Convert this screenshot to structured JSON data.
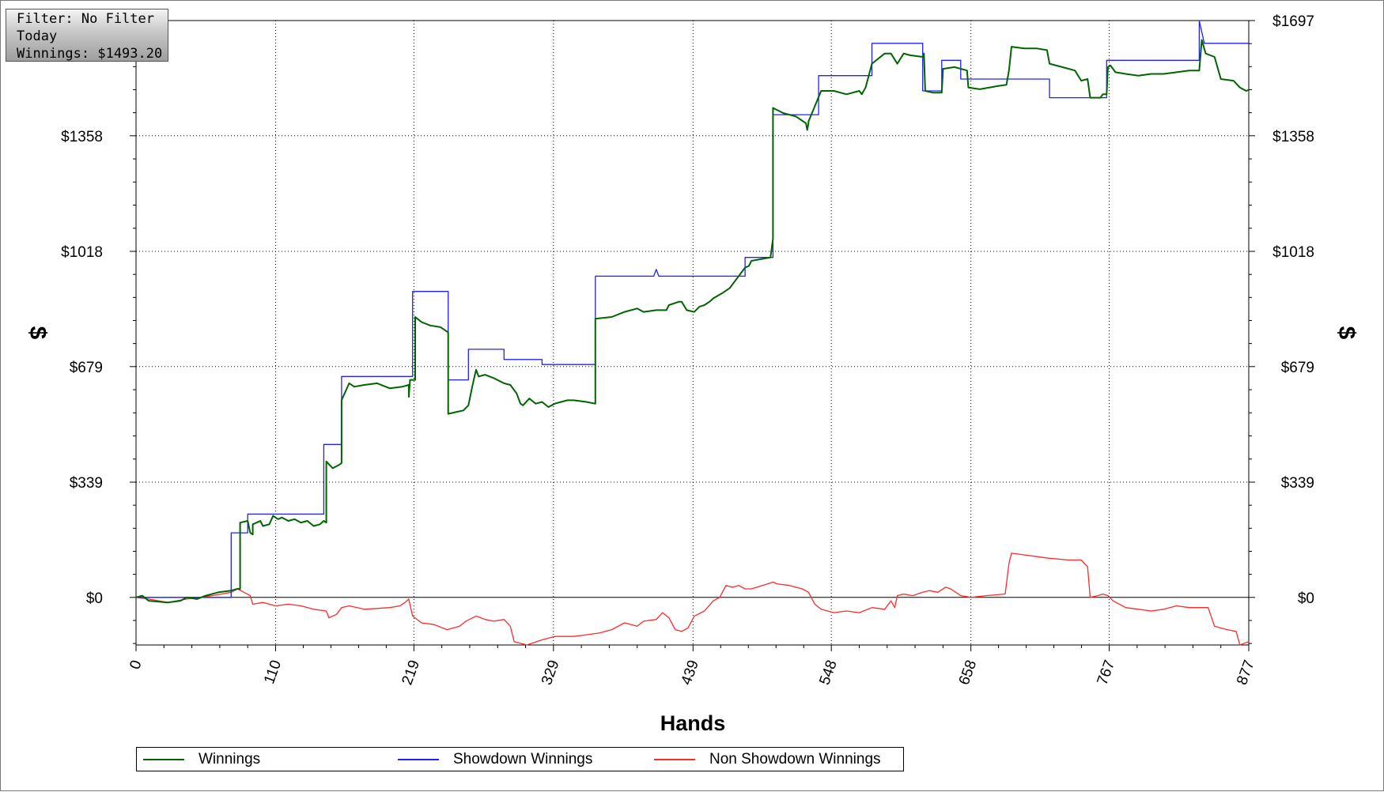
{
  "info_box": {
    "filter": "Filter: No Filter",
    "period": "Today",
    "winnings": "Winnings: $1493.20"
  },
  "colors": {
    "winnings": "#006400",
    "showdown": "#2020ff",
    "non_showdown": "#ff2a2a",
    "grid": "#000000"
  },
  "chart_data": {
    "type": "line",
    "xlabel": "Hands",
    "ylabel": "$",
    "xlim": [
      0,
      877
    ],
    "ylim": [
      -140,
      1697
    ],
    "x_ticks": [
      "0",
      "110",
      "219",
      "329",
      "439",
      "548",
      "658",
      "767",
      "877"
    ],
    "y_ticks": [
      "$0",
      "$339",
      "$679",
      "$1018",
      "$1358",
      "$1697"
    ],
    "grid": true,
    "legend_position": "bottom",
    "series": [
      {
        "name": "Winnings",
        "points": [
          [
            0,
            0
          ],
          [
            5,
            5
          ],
          [
            10,
            -10
          ],
          [
            25,
            -15
          ],
          [
            35,
            -10
          ],
          [
            40,
            0
          ],
          [
            48,
            -5
          ],
          [
            55,
            5
          ],
          [
            65,
            15
          ],
          [
            75,
            20
          ],
          [
            80,
            25
          ],
          [
            82,
            25
          ],
          [
            82,
            220
          ],
          [
            88,
            225
          ],
          [
            90,
            190
          ],
          [
            92,
            185
          ],
          [
            92,
            215
          ],
          [
            95,
            220
          ],
          [
            98,
            225
          ],
          [
            100,
            210
          ],
          [
            105,
            215
          ],
          [
            108,
            240
          ],
          [
            112,
            230
          ],
          [
            115,
            235
          ],
          [
            120,
            225
          ],
          [
            125,
            230
          ],
          [
            130,
            220
          ],
          [
            135,
            225
          ],
          [
            140,
            210
          ],
          [
            145,
            215
          ],
          [
            148,
            225
          ],
          [
            150,
            220
          ],
          [
            150,
            400
          ],
          [
            155,
            380
          ],
          [
            160,
            390
          ],
          [
            162,
            395
          ],
          [
            162,
            580
          ],
          [
            168,
            630
          ],
          [
            172,
            620
          ],
          [
            180,
            625
          ],
          [
            190,
            630
          ],
          [
            200,
            615
          ],
          [
            210,
            620
          ],
          [
            215,
            625
          ],
          [
            215,
            590
          ],
          [
            216,
            640
          ],
          [
            220,
            640
          ],
          [
            220,
            825
          ],
          [
            225,
            810
          ],
          [
            232,
            800
          ],
          [
            240,
            795
          ],
          [
            246,
            780
          ],
          [
            246,
            540
          ],
          [
            252,
            545
          ],
          [
            258,
            550
          ],
          [
            262,
            565
          ],
          [
            265,
            620
          ],
          [
            268,
            670
          ],
          [
            270,
            650
          ],
          [
            275,
            655
          ],
          [
            282,
            645
          ],
          [
            290,
            630
          ],
          [
            295,
            625
          ],
          [
            300,
            600
          ],
          [
            303,
            570
          ],
          [
            305,
            565
          ],
          [
            310,
            585
          ],
          [
            315,
            570
          ],
          [
            320,
            575
          ],
          [
            325,
            560
          ],
          [
            330,
            570
          ],
          [
            335,
            575
          ],
          [
            340,
            580
          ],
          [
            345,
            580
          ],
          [
            355,
            575
          ],
          [
            362,
            570
          ],
          [
            362,
            820
          ],
          [
            375,
            825
          ],
          [
            385,
            840
          ],
          [
            395,
            850
          ],
          [
            400,
            840
          ],
          [
            410,
            845
          ],
          [
            418,
            845
          ],
          [
            420,
            860
          ],
          [
            428,
            870
          ],
          [
            430,
            870
          ],
          [
            434,
            845
          ],
          [
            440,
            840
          ],
          [
            444,
            855
          ],
          [
            448,
            860
          ],
          [
            452,
            870
          ],
          [
            455,
            880
          ],
          [
            462,
            895
          ],
          [
            468,
            910
          ],
          [
            472,
            930
          ],
          [
            480,
            970
          ],
          [
            483,
            975
          ],
          [
            485,
            990
          ],
          [
            500,
            1000
          ],
          [
            502,
            1055
          ],
          [
            502,
            1440
          ],
          [
            510,
            1425
          ],
          [
            520,
            1415
          ],
          [
            528,
            1395
          ],
          [
            529,
            1375
          ],
          [
            530,
            1395
          ],
          [
            530,
            1400
          ],
          [
            540,
            1490
          ],
          [
            550,
            1490
          ],
          [
            560,
            1480
          ],
          [
            570,
            1490
          ],
          [
            572,
            1480
          ],
          [
            575,
            1500
          ],
          [
            580,
            1570
          ],
          [
            590,
            1600
          ],
          [
            595,
            1600
          ],
          [
            600,
            1570
          ],
          [
            605,
            1600
          ],
          [
            610,
            1595
          ],
          [
            620,
            1590
          ],
          [
            621,
            1600
          ],
          [
            622,
            1490
          ],
          [
            628,
            1485
          ],
          [
            635,
            1485
          ],
          [
            636,
            1555
          ],
          [
            645,
            1560
          ],
          [
            655,
            1550
          ],
          [
            656,
            1500
          ],
          [
            665,
            1495
          ],
          [
            680,
            1505
          ],
          [
            686,
            1508
          ],
          [
            688,
            1550
          ],
          [
            690,
            1620
          ],
          [
            700,
            1615
          ],
          [
            710,
            1615
          ],
          [
            718,
            1610
          ],
          [
            720,
            1570
          ],
          [
            730,
            1560
          ],
          [
            740,
            1550
          ],
          [
            745,
            1520
          ],
          [
            750,
            1525
          ],
          [
            752,
            1470
          ],
          [
            760,
            1470
          ],
          [
            762,
            1480
          ],
          [
            765,
            1480
          ],
          [
            766,
            1560
          ],
          [
            768,
            1565
          ],
          [
            772,
            1545
          ],
          [
            780,
            1540
          ],
          [
            790,
            1535
          ],
          [
            800,
            1540
          ],
          [
            810,
            1540
          ],
          [
            820,
            1545
          ],
          [
            830,
            1550
          ],
          [
            838,
            1550
          ],
          [
            840,
            1640
          ],
          [
            843,
            1600
          ],
          [
            850,
            1590
          ],
          [
            855,
            1525
          ],
          [
            865,
            1520
          ],
          [
            870,
            1500
          ],
          [
            875,
            1490
          ],
          [
            877,
            1493
          ]
        ]
      },
      {
        "name": "Showdown Winnings",
        "points": [
          [
            0,
            0
          ],
          [
            75,
            0
          ],
          [
            75,
            190
          ],
          [
            88,
            190
          ],
          [
            88,
            245
          ],
          [
            148,
            245
          ],
          [
            148,
            450
          ],
          [
            162,
            450
          ],
          [
            162,
            650
          ],
          [
            218,
            650
          ],
          [
            218,
            900
          ],
          [
            246,
            900
          ],
          [
            246,
            640
          ],
          [
            262,
            640
          ],
          [
            262,
            730
          ],
          [
            290,
            730
          ],
          [
            290,
            700
          ],
          [
            320,
            700
          ],
          [
            320,
            685
          ],
          [
            362,
            685
          ],
          [
            362,
            945
          ],
          [
            408,
            945
          ],
          [
            410,
            965
          ],
          [
            412,
            945
          ],
          [
            480,
            945
          ],
          [
            480,
            1000
          ],
          [
            502,
            1000
          ],
          [
            502,
            1420
          ],
          [
            538,
            1420
          ],
          [
            538,
            1535
          ],
          [
            580,
            1535
          ],
          [
            580,
            1630
          ],
          [
            620,
            1630
          ],
          [
            620,
            1490
          ],
          [
            635,
            1490
          ],
          [
            635,
            1580
          ],
          [
            650,
            1580
          ],
          [
            650,
            1525
          ],
          [
            720,
            1525
          ],
          [
            720,
            1470
          ],
          [
            765,
            1470
          ],
          [
            765,
            1580
          ],
          [
            838,
            1580
          ],
          [
            838,
            1697
          ],
          [
            842,
            1630
          ],
          [
            877,
            1630
          ]
        ]
      },
      {
        "name": "Non Showdown Winnings",
        "points": [
          [
            0,
            0
          ],
          [
            10,
            -5
          ],
          [
            25,
            -15
          ],
          [
            40,
            -5
          ],
          [
            60,
            5
          ],
          [
            75,
            15
          ],
          [
            80,
            25
          ],
          [
            85,
            15
          ],
          [
            90,
            5
          ],
          [
            92,
            -20
          ],
          [
            100,
            -15
          ],
          [
            110,
            -25
          ],
          [
            120,
            -20
          ],
          [
            130,
            -25
          ],
          [
            140,
            -35
          ],
          [
            150,
            -40
          ],
          [
            152,
            -60
          ],
          [
            158,
            -50
          ],
          [
            162,
            -30
          ],
          [
            168,
            -25
          ],
          [
            180,
            -35
          ],
          [
            200,
            -30
          ],
          [
            208,
            -25
          ],
          [
            212,
            -15
          ],
          [
            215,
            -5
          ],
          [
            218,
            -55
          ],
          [
            225,
            -75
          ],
          [
            235,
            -80
          ],
          [
            245,
            -95
          ],
          [
            255,
            -85
          ],
          [
            260,
            -70
          ],
          [
            268,
            -55
          ],
          [
            275,
            -65
          ],
          [
            282,
            -70
          ],
          [
            290,
            -65
          ],
          [
            295,
            -85
          ],
          [
            298,
            -130
          ],
          [
            308,
            -140
          ],
          [
            320,
            -125
          ],
          [
            330,
            -115
          ],
          [
            345,
            -115
          ],
          [
            355,
            -110
          ],
          [
            365,
            -105
          ],
          [
            375,
            -95
          ],
          [
            385,
            -75
          ],
          [
            395,
            -85
          ],
          [
            400,
            -70
          ],
          [
            410,
            -65
          ],
          [
            415,
            -45
          ],
          [
            420,
            -60
          ],
          [
            425,
            -95
          ],
          [
            430,
            -100
          ],
          [
            435,
            -90
          ],
          [
            440,
            -55
          ],
          [
            448,
            -40
          ],
          [
            455,
            -10
          ],
          [
            460,
            0
          ],
          [
            465,
            35
          ],
          [
            470,
            30
          ],
          [
            475,
            35
          ],
          [
            480,
            25
          ],
          [
            485,
            25
          ],
          [
            498,
            40
          ],
          [
            502,
            45
          ],
          [
            505,
            40
          ],
          [
            515,
            35
          ],
          [
            525,
            25
          ],
          [
            530,
            15
          ],
          [
            535,
            -20
          ],
          [
            540,
            -35
          ],
          [
            550,
            -45
          ],
          [
            560,
            -40
          ],
          [
            570,
            -45
          ],
          [
            580,
            -30
          ],
          [
            590,
            -35
          ],
          [
            595,
            -10
          ],
          [
            598,
            -30
          ],
          [
            600,
            5
          ],
          [
            605,
            10
          ],
          [
            612,
            5
          ],
          [
            620,
            15
          ],
          [
            625,
            20
          ],
          [
            632,
            15
          ],
          [
            638,
            30
          ],
          [
            642,
            25
          ],
          [
            650,
            5
          ],
          [
            658,
            0
          ],
          [
            670,
            5
          ],
          [
            685,
            10
          ],
          [
            688,
            100
          ],
          [
            690,
            130
          ],
          [
            700,
            125
          ],
          [
            710,
            120
          ],
          [
            720,
            115
          ],
          [
            735,
            110
          ],
          [
            745,
            110
          ],
          [
            750,
            90
          ],
          [
            752,
            0
          ],
          [
            758,
            5
          ],
          [
            762,
            10
          ],
          [
            766,
            5
          ],
          [
            770,
            -10
          ],
          [
            780,
            -30
          ],
          [
            790,
            -35
          ],
          [
            800,
            -40
          ],
          [
            810,
            -35
          ],
          [
            820,
            -25
          ],
          [
            830,
            -30
          ],
          [
            840,
            -30
          ],
          [
            845,
            -30
          ],
          [
            850,
            -85
          ],
          [
            860,
            -95
          ],
          [
            867,
            -100
          ],
          [
            870,
            -140
          ],
          [
            877,
            -130
          ]
        ]
      }
    ]
  }
}
